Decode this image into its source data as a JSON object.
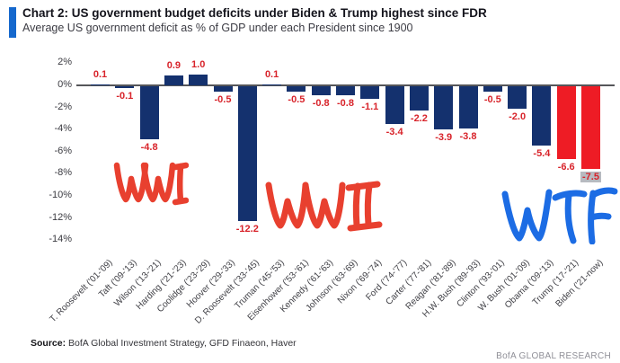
{
  "header": {
    "title": "Chart 2: US government budget deficits under Biden & Trump highest since FDR",
    "subtitle": "Average US government deficit as % of GDP under each President since 1900",
    "accent_color": "#1568cd"
  },
  "chart_data": {
    "type": "bar",
    "title": "Chart 2: US government budget deficits under Biden & Trump highest since FDR",
    "subtitle": "Average US government deficit as % of GDP under each President since 1900",
    "categories": [
      "T. Roosevelt ('01-'09)",
      "Taft ('09-'13)",
      "Wilson ('13-'21)",
      "Harding ('21-'23)",
      "Coolidge ('23-'29)",
      "Hoover ('29-'33)",
      "D. Roosevelt ('33-'45)",
      "Truman ('45-'53)",
      "Eisenhower ('53-'61)",
      "Kennedy ('61-'63)",
      "Johnson ('63-'69)",
      "Nixon ('69-'74)",
      "Ford ('74-'77)",
      "Carter ('77-'81)",
      "Reagan ('81-'89)",
      "H.W. Bush ('89-'93)",
      "Clinton ('93-'01)",
      "W. Bush ('01-'09)",
      "Obama ('09-'13)",
      "Trump ('17-'21)",
      "Biden ('21-now)"
    ],
    "values": [
      0.1,
      -0.1,
      -4.8,
      0.9,
      1.0,
      -0.5,
      -12.2,
      0.1,
      -0.5,
      -0.8,
      -0.8,
      -1.1,
      -3.4,
      -2.2,
      -3.9,
      -3.8,
      -0.5,
      -2.0,
      -5.4,
      -6.6,
      -7.5
    ],
    "bar_colors": [
      "#14316e",
      "#14316e",
      "#14316e",
      "#14316e",
      "#14316e",
      "#14316e",
      "#14316e",
      "#14316e",
      "#14316e",
      "#14316e",
      "#14316e",
      "#14316e",
      "#14316e",
      "#14316e",
      "#14316e",
      "#14316e",
      "#14316e",
      "#14316e",
      "#14316e",
      "#ee1c25",
      "#ee1c25"
    ],
    "value_label_color": "#d8232a",
    "highlighted_value_index": 20,
    "highlight_background": "#b7bac0",
    "yticks": [
      "2%",
      "0%",
      "-2%",
      "-4%",
      "-6%",
      "-8%",
      "-10%",
      "-12%",
      "-14%"
    ],
    "ylim": [
      -14,
      2
    ],
    "grid": false,
    "legend": "none",
    "annotations": [
      {
        "text": "WWI",
        "color": "#e8402f"
      },
      {
        "text": "WWII",
        "color": "#e8402f"
      },
      {
        "text": "WTF",
        "color": "#1c6ce4"
      }
    ]
  },
  "footer": {
    "source_label": "Source:",
    "source_text": " BofA Global Investment Strategy, GFD Finaeon, Haver",
    "brand": "BofA GLOBAL RESEARCH"
  }
}
